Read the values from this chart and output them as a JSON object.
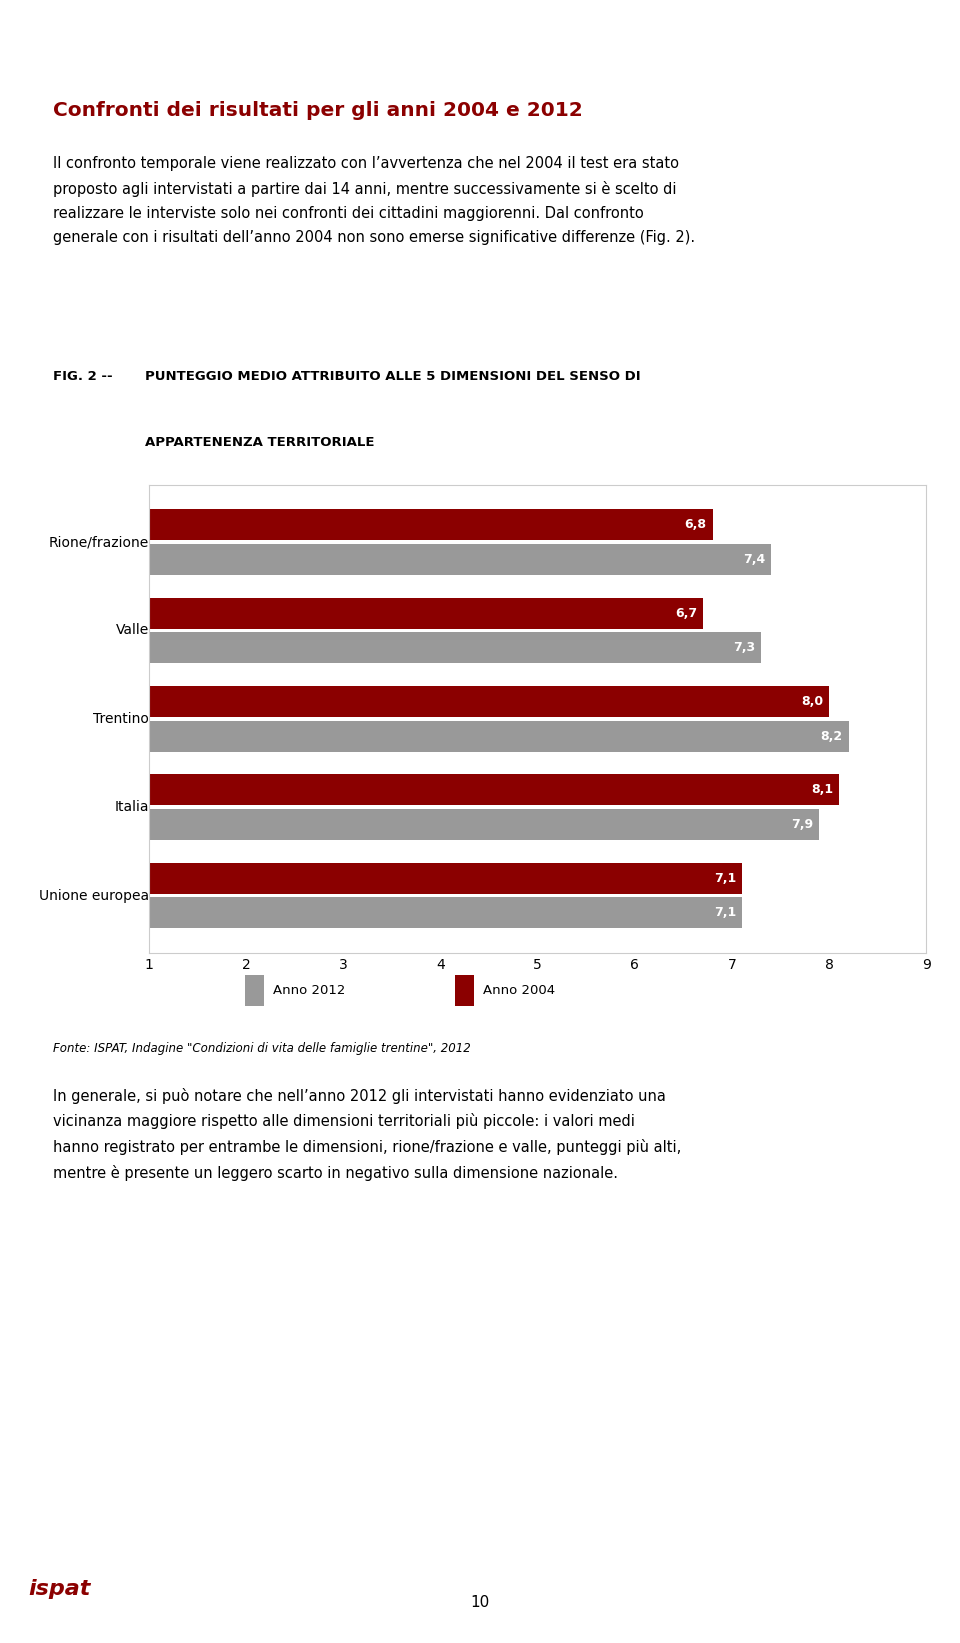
{
  "title_section": "Confronti dei risultati per gli anni 2004 e 2012",
  "intro_text": "Il confronto temporale viene realizzato con l’avvertenza che nel 2004 il test era stato\nproposto agli intervistati a partire dai 14 anni, mentre successivamente si è scelto di\nrealizzare le interviste solo nei confronti dei cittadini maggiorenni. Dal confronto\ngenerale con i risultati dell’anno 2004 non sono emerse significative differenze (Fig. 2).",
  "fig_label": "FIG. 2 --",
  "fig_title_line1": "PUNTEGGIO MEDIO ATTRIBUITO ALLE 5 DIMENSIONI DEL SENSO DI",
  "fig_title_line2": "APPARTENENZA TERRITORIALE",
  "categories": [
    "Rione/frazione",
    "Valle",
    "Trentino",
    "Italia",
    "Unione europea"
  ],
  "values_2012": [
    7.4,
    7.3,
    8.2,
    7.9,
    7.1
  ],
  "values_2004": [
    6.8,
    6.7,
    8.0,
    8.1,
    7.1
  ],
  "color_2012": "#999999",
  "color_2004": "#8B0000",
  "bar_height": 0.35,
  "xlim": [
    1,
    9
  ],
  "xticks": [
    1,
    2,
    3,
    4,
    5,
    6,
    7,
    8,
    9
  ],
  "legend_2012": "Anno 2012",
  "legend_2004": "Anno 2004",
  "fonte_text": "Fonte: ISPAT, Indagine \"Condizioni di vita delle famiglie trentine\", 2012",
  "closing_text": "In generale, si può notare che nell’anno 2012 gli intervistati hanno evidenziato una\nvicinanza maggiore rispetto alle dimensioni territoriali più piccole: i valori medi\nhanno registrato per entrambe le dimensioni, rione/frazione e valle, punteggi più alti,\nmentre è presente un leggero scarto in negativo sulla dimensione nazionale.",
  "top_bar_color": "#8B0000",
  "background_color": "#ffffff",
  "page_number": "10"
}
